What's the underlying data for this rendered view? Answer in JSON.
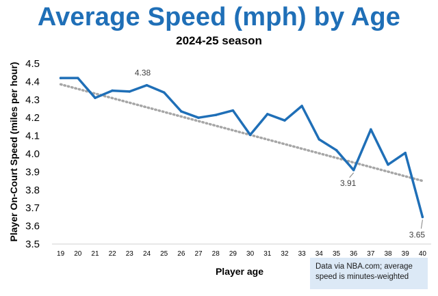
{
  "chart_data": {
    "type": "line",
    "title": "Average Speed (mph) by Age",
    "subtitle": "2024-25 season",
    "xlabel": "Player age",
    "ylabel": "Player On-Court Speed (miles per hour)",
    "x": [
      19,
      20,
      21,
      22,
      23,
      24,
      25,
      26,
      27,
      28,
      29,
      30,
      31,
      32,
      33,
      34,
      35,
      36,
      37,
      38,
      39,
      40
    ],
    "series": [
      {
        "values": [
          4.42,
          4.42,
          4.31,
          4.35,
          4.345,
          4.38,
          4.34,
          4.235,
          4.2,
          4.215,
          4.24,
          4.105,
          4.22,
          4.185,
          4.265,
          4.08,
          4.02,
          3.91,
          4.135,
          3.94,
          4.005,
          3.65
        ],
        "color": "#1f6fb7"
      }
    ],
    "trendline": {
      "start": 4.385,
      "end": 3.85,
      "color": "#a6a6a6",
      "style": "dotted"
    },
    "ylim": [
      3.5,
      4.5
    ],
    "yticks": [
      "3.5",
      "3.6",
      "3.7",
      "3.8",
      "3.9",
      "4.0",
      "4.1",
      "4.2",
      "4.3",
      "4.4",
      "4.5"
    ],
    "xticks": [
      "19",
      "20",
      "21",
      "22",
      "23",
      "24",
      "25",
      "26",
      "27",
      "28",
      "29",
      "30",
      "31",
      "32",
      "33",
      "34",
      "35",
      "36",
      "37",
      "38",
      "39",
      "40"
    ],
    "annotations": [
      {
        "text": "4.38",
        "x": 24,
        "y": 4.38
      },
      {
        "text": "3.91",
        "x": 36,
        "y": 3.91
      },
      {
        "text": "3.65",
        "x": 40,
        "y": 3.65
      }
    ],
    "grid": false,
    "legend": "none"
  },
  "note": {
    "line1": "Data via NBA.com;  average",
    "line2": "speed is minutes-weighted"
  }
}
